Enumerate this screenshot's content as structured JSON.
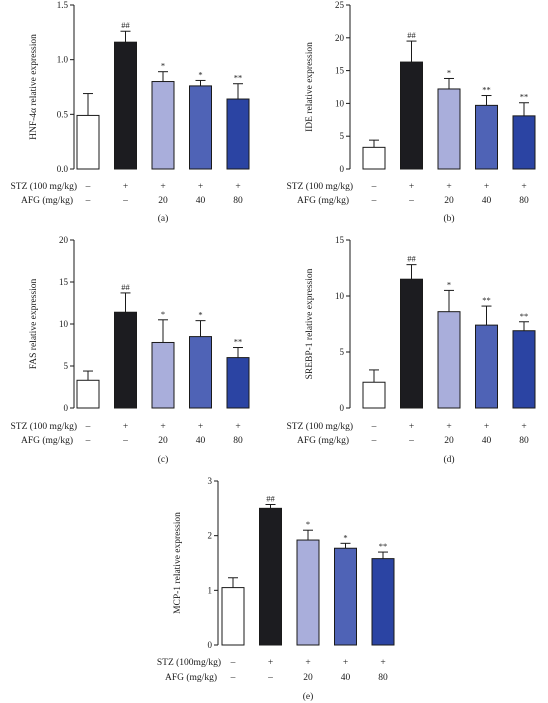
{
  "colors": [
    "#ffffff",
    "#1c1c20",
    "#a9aedb",
    "#4f63b6",
    "#2b44a3"
  ],
  "condition_labels": {
    "stz": "STZ (100 mg/kg)",
    "stz_panel_e": "STZ (100mg/kg)",
    "afg": "AFG (mg/kg)"
  },
  "stz_row": [
    "–",
    "+",
    "+",
    "+",
    "+"
  ],
  "afg_row": [
    "–",
    "–",
    "20",
    "40",
    "80"
  ],
  "chart_data": [
    {
      "type": "bar",
      "panel": "(a)",
      "ylabel": "HNF-4α relative expression",
      "ylim": [
        0,
        1.5
      ],
      "yticks": [
        "0.0",
        "0.5",
        "1.0",
        "1.5"
      ],
      "values": [
        0.49,
        1.16,
        0.8,
        0.76,
        0.64
      ],
      "errors": [
        0.2,
        0.1,
        0.09,
        0.05,
        0.14
      ],
      "significance": [
        "",
        "##",
        "*",
        "*",
        "**"
      ]
    },
    {
      "type": "bar",
      "panel": "(b)",
      "ylabel": "IDE relative expression",
      "ylim": [
        0,
        25
      ],
      "yticks": [
        "0",
        "5",
        "10",
        "15",
        "20",
        "25"
      ],
      "values": [
        3.3,
        16.3,
        12.2,
        9.7,
        8.1
      ],
      "errors": [
        1.1,
        3.2,
        1.6,
        1.5,
        2.0
      ],
      "significance": [
        "",
        "##",
        "*",
        "**",
        "**"
      ]
    },
    {
      "type": "bar",
      "panel": "(c)",
      "ylabel": "FAS relative expression",
      "ylim": [
        0,
        20
      ],
      "yticks": [
        "0",
        "5",
        "10",
        "15",
        "20"
      ],
      "values": [
        3.3,
        11.4,
        7.8,
        8.5,
        6.0
      ],
      "errors": [
        1.1,
        2.3,
        2.7,
        1.9,
        1.2
      ],
      "significance": [
        "",
        "##",
        "*",
        "*",
        "**"
      ]
    },
    {
      "type": "bar",
      "panel": "(d)",
      "ylabel": "SREBP-1 relative expression",
      "ylim": [
        0,
        15
      ],
      "yticks": [
        "0",
        "5",
        "10",
        "15"
      ],
      "values": [
        2.3,
        11.5,
        8.6,
        7.4,
        6.9
      ],
      "errors": [
        1.1,
        1.3,
        1.9,
        1.7,
        0.8
      ],
      "significance": [
        "",
        "##",
        "*",
        "**",
        "**"
      ]
    },
    {
      "type": "bar",
      "panel": "(e)",
      "ylabel": "MCP-1 relative expression",
      "ylim": [
        0,
        3
      ],
      "yticks": [
        "0",
        "1",
        "2",
        "3"
      ],
      "values": [
        1.05,
        2.5,
        1.92,
        1.77,
        1.58
      ],
      "errors": [
        0.18,
        0.07,
        0.18,
        0.09,
        0.12
      ],
      "significance": [
        "",
        "##",
        "*",
        "*",
        "**"
      ]
    }
  ]
}
